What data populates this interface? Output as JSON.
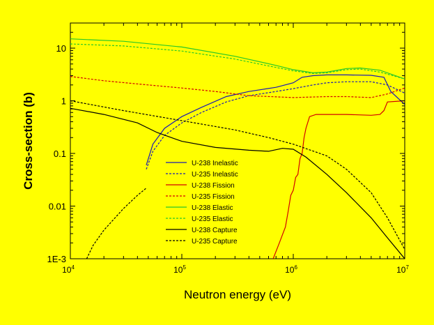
{
  "chart_data": {
    "type": "line",
    "title": "",
    "xlabel": "Neutron energy (eV)",
    "ylabel": "Cross-section (b)",
    "x_scale": "log",
    "y_scale": "log",
    "xlim": [
      10000,
      10000000
    ],
    "ylim": [
      0.001,
      30
    ],
    "grid": false,
    "legend_position": "center",
    "x_ticks": [
      {
        "value": 10000,
        "base": "10",
        "exp": "4"
      },
      {
        "value": 100000,
        "base": "10",
        "exp": "5"
      },
      {
        "value": 1000000,
        "base": "10",
        "exp": "6"
      },
      {
        "value": 10000000,
        "base": "10",
        "exp": "7"
      }
    ],
    "y_ticks": [
      {
        "value": 0.001,
        "label": "1E-3"
      },
      {
        "value": 0.01,
        "label": "0.01"
      },
      {
        "value": 0.1,
        "label": "0.1"
      },
      {
        "value": 1,
        "label": "1"
      },
      {
        "value": 10,
        "label": "10"
      }
    ],
    "series": [
      {
        "name": "U-238 Inelastic",
        "color": "#1a1ab4",
        "dash": "solid",
        "x": [
          48000,
          55000,
          70000,
          100000,
          150000,
          250000,
          400000,
          700000,
          1000000,
          1200000,
          1500000,
          2000000,
          3000000,
          5000000,
          6500000,
          7500000,
          10000000
        ],
        "y": [
          0.06,
          0.15,
          0.3,
          0.5,
          0.75,
          1.2,
          1.5,
          1.8,
          2.2,
          2.8,
          3.0,
          3.1,
          3.1,
          3.05,
          2.8,
          1.5,
          0.85
        ]
      },
      {
        "name": "U-235 Inelastic",
        "color": "#1a1ab4",
        "dash": "dash",
        "x": [
          48000,
          55000,
          70000,
          100000,
          150000,
          250000,
          400000,
          700000,
          1000000,
          1500000,
          2000000,
          3000000,
          5000000,
          7000000,
          10000000
        ],
        "y": [
          0.05,
          0.11,
          0.22,
          0.38,
          0.6,
          0.95,
          1.25,
          1.5,
          1.7,
          2.0,
          2.2,
          2.3,
          2.3,
          2.0,
          1.4
        ]
      },
      {
        "name": "U-238 Fission",
        "color": "#d20000",
        "dash": "solid",
        "x": [
          660000,
          750000,
          850000,
          900000,
          950000,
          1000000,
          1050000,
          1100000,
          1150000,
          1200000,
          1250000,
          1300000,
          1400000,
          1600000,
          2000000,
          3000000,
          5000000,
          6000000,
          6500000,
          7000000,
          10000000
        ],
        "y": [
          0.001,
          0.002,
          0.004,
          0.008,
          0.016,
          0.02,
          0.035,
          0.04,
          0.08,
          0.1,
          0.2,
          0.3,
          0.5,
          0.55,
          0.55,
          0.55,
          0.53,
          0.55,
          0.65,
          0.95,
          1.0
        ]
      },
      {
        "name": "U-235 Fission",
        "color": "#d20000",
        "dash": "dash",
        "x": [
          10000,
          20000,
          50000,
          100000,
          200000,
          400000,
          1000000,
          2000000,
          3000000,
          5000000,
          7000000,
          10000000
        ],
        "y": [
          2.9,
          2.4,
          2.0,
          1.75,
          1.5,
          1.25,
          1.15,
          1.2,
          1.2,
          1.15,
          1.35,
          1.75
        ]
      },
      {
        "name": "U-238 Elastic",
        "color": "#28c828",
        "dash": "solid",
        "x": [
          10000,
          30000,
          100000,
          300000,
          700000,
          1000000,
          1500000,
          2000000,
          3000000,
          4000000,
          6000000,
          10000000
        ],
        "y": [
          15,
          13.5,
          10.5,
          7.0,
          4.7,
          3.9,
          3.4,
          3.5,
          4.1,
          4.2,
          3.8,
          2.6
        ]
      },
      {
        "name": "U-235 Elastic",
        "color": "#28c828",
        "dash": "dash",
        "x": [
          10000,
          30000,
          100000,
          300000,
          700000,
          1000000,
          1500000,
          2000000,
          3000000,
          4000000,
          6000000,
          10000000
        ],
        "y": [
          12,
          11,
          8.8,
          6.2,
          4.3,
          3.7,
          3.3,
          3.4,
          3.9,
          4.0,
          3.5,
          2.6
        ]
      },
      {
        "name": "U-238 Capture",
        "color": "#000000",
        "dash": "solid",
        "x": [
          10000,
          20000,
          40000,
          60000,
          100000,
          200000,
          400000,
          600000,
          800000,
          1000000,
          1300000,
          2000000,
          3000000,
          5000000,
          7000000,
          10000000
        ],
        "y": [
          0.72,
          0.55,
          0.38,
          0.25,
          0.17,
          0.13,
          0.115,
          0.11,
          0.125,
          0.12,
          0.085,
          0.04,
          0.018,
          0.006,
          0.0025,
          0.001
        ]
      },
      {
        "name": "U-235 Capture",
        "color": "#000000",
        "dash": "dash",
        "x": [
          10000,
          30000,
          100000,
          300000,
          600000,
          1000000,
          2000000,
          3000000,
          5000000,
          7000000,
          10000000
        ],
        "y": [
          1.0,
          0.65,
          0.42,
          0.28,
          0.2,
          0.15,
          0.09,
          0.05,
          0.018,
          0.006,
          0.0015
        ]
      },
      {
        "name": "",
        "color": "#000000",
        "dash": "dash",
        "x": [
          14000,
          16000,
          20000,
          30000,
          40000,
          48000
        ],
        "y": [
          0.001,
          0.0018,
          0.0035,
          0.009,
          0.016,
          0.022
        ]
      }
    ]
  }
}
